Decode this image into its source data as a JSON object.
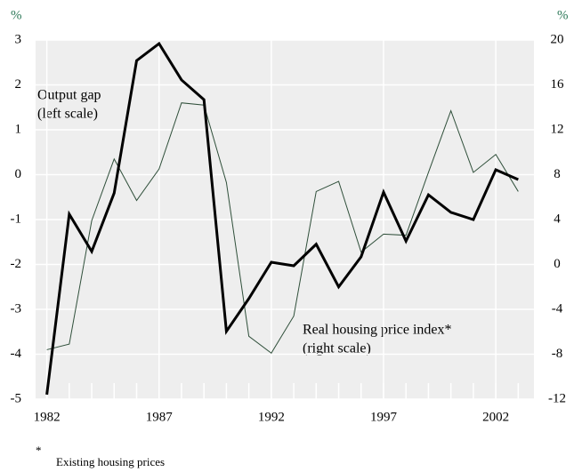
{
  "chart_data": {
    "type": "line",
    "y_unit_label": "%",
    "y2_unit_label": "%",
    "x": [
      1982,
      1983,
      1984,
      1985,
      1986,
      1987,
      1988,
      1989,
      1990,
      1991,
      1992,
      1993,
      1994,
      1995,
      1996,
      1997,
      1998,
      1999,
      2000,
      2001,
      2002,
      2003
    ],
    "series": [
      {
        "name": "Output gap",
        "color": "#000000",
        "axis": "y",
        "values": [
          -4.9,
          -0.88,
          -1.71,
          -0.41,
          2.54,
          2.92,
          2.11,
          1.67,
          -3.49,
          -2.76,
          -1.95,
          -2.03,
          -1.55,
          -2.5,
          -1.83,
          -0.39,
          -1.48,
          -0.45,
          -0.84,
          -1.0,
          0.11,
          -0.11
        ]
      },
      {
        "name": "Real housing price index",
        "color": "#2f4f3a",
        "axis": "y2",
        "values": [
          -7.6,
          -7.1,
          3.9,
          9.4,
          5.7,
          8.5,
          14.4,
          14.2,
          7.3,
          -6.4,
          -7.9,
          -4.6,
          6.5,
          7.4,
          1.1,
          2.7,
          2.6,
          8.2,
          13.7,
          8.2,
          9.8,
          6.5
        ]
      }
    ],
    "xlim": [
      1981.5,
      2003.7
    ],
    "xticks": [
      1982,
      1987,
      1992,
      1997,
      2002
    ],
    "ylim": [
      -5,
      3
    ],
    "yticks": [
      -5,
      -4,
      -3,
      -2,
      -1,
      0,
      1,
      2,
      3
    ],
    "y2lim": [
      -12,
      20
    ],
    "y2ticks": [
      -12,
      -8,
      -4,
      0,
      4,
      8,
      12,
      16,
      20
    ],
    "grid": true,
    "annotations": [
      {
        "lines": [
          "Output gap",
          "(left scale)"
        ]
      },
      {
        "lines": [
          "Real housing price index*",
          "(right scale)"
        ]
      }
    ],
    "footnote": {
      "marker": "*",
      "text": "Existing housing prices"
    }
  }
}
